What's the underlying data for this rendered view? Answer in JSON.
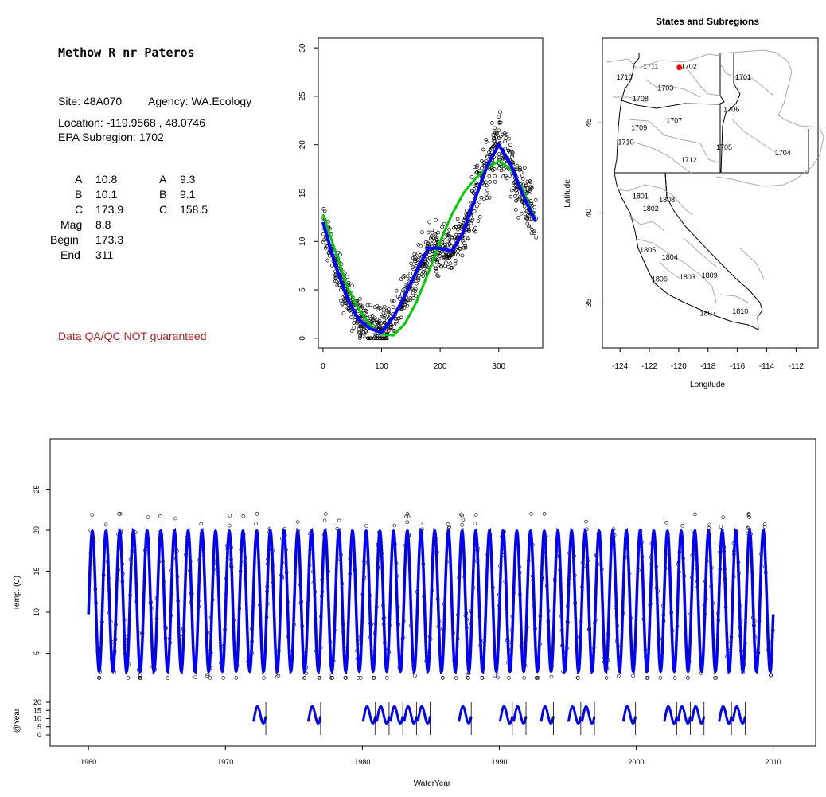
{
  "site": {
    "name": "Methow R nr Pateros",
    "site_line": "Site: 48A070",
    "agency_line": "Agency: WA.Ecology",
    "location_line": "Location: -119.9568 , 48.0746",
    "subregion_line": "EPA Subregion: 1702",
    "params_left": [
      {
        "label": "A",
        "value": "10.8"
      },
      {
        "label": "B",
        "value": "10.1"
      },
      {
        "label": "C",
        "value": "173.9"
      },
      {
        "label": "Mag",
        "value": "8.8"
      },
      {
        "label": "Begin",
        "value": "173.3"
      },
      {
        "label": "End",
        "value": "311"
      }
    ],
    "params_right": [
      {
        "label": "A",
        "value": "9.3"
      },
      {
        "label": "B",
        "value": "9.1"
      },
      {
        "label": "C",
        "value": "158.5"
      }
    ],
    "warning": "Data QA/QC NOT guaranteed",
    "warning_color": "#b22222"
  },
  "chart_data": [
    {
      "type": "scatter",
      "x_ticks": [
        "0",
        "100",
        "200",
        "300"
      ],
      "y_ticks": [
        "0",
        "5",
        "10",
        "15",
        "20",
        "25",
        "30"
      ],
      "xlim": [
        -8,
        375
      ],
      "ylim": [
        -1,
        31
      ],
      "colors": {
        "points": "#000000",
        "blue_curve": "#0000ff",
        "green_curve": "#00cc00"
      },
      "blue_curve": {
        "x": [
          0,
          20,
          40,
          60,
          80,
          100,
          120,
          140,
          160,
          180,
          200,
          220,
          240,
          260,
          280,
          300,
          320,
          340,
          365
        ],
        "y": [
          12,
          7.8,
          4.3,
          2.0,
          1.0,
          0.6,
          2.2,
          4.4,
          7.0,
          9.3,
          9.3,
          9.0,
          11.0,
          14.5,
          17.8,
          20.0,
          18.0,
          15.0,
          11.8
        ]
      },
      "green_curve": {
        "x": [
          0,
          20,
          40,
          60,
          80,
          100,
          120,
          140,
          160,
          180,
          200,
          220,
          240,
          260,
          280,
          300,
          320,
          340,
          365
        ],
        "y": [
          12.8,
          9.2,
          5.5,
          3.1,
          1.4,
          0.4,
          0.3,
          1.5,
          3.8,
          6.8,
          10.0,
          12.8,
          15.0,
          16.5,
          17.6,
          18.3,
          17.5,
          15.5,
          12.0
        ]
      }
    },
    {
      "type": "map",
      "title": "States and Subregions",
      "xlabel": "Longitude",
      "ylabel": "Latitude",
      "x_ticks": [
        "-124",
        "-122",
        "-120",
        "-118",
        "-116",
        "-114",
        "-112"
      ],
      "y_ticks": [
        "35",
        "40",
        "45"
      ],
      "site_point": {
        "lon": -119.9568,
        "lat": 48.0746,
        "color": "#ff0000"
      },
      "regions": [
        {
          "label": "1702",
          "lon": -119.3,
          "lat": 48.0
        },
        {
          "label": "1711",
          "lon": -121.9,
          "lat": 48.0
        },
        {
          "label": "1710",
          "lon": -123.7,
          "lat": 47.4
        },
        {
          "label": "1703",
          "lon": -120.9,
          "lat": 46.8
        },
        {
          "label": "1701",
          "lon": -115.6,
          "lat": 47.4
        },
        {
          "label": "1708",
          "lon": -122.6,
          "lat": 46.2
        },
        {
          "label": "1706",
          "lon": -116.4,
          "lat": 45.6
        },
        {
          "label": "1707",
          "lon": -120.3,
          "lat": 45.0
        },
        {
          "label": "1709",
          "lon": -122.7,
          "lat": 44.6
        },
        {
          "label": "1710",
          "lon": -123.6,
          "lat": 43.8
        },
        {
          "label": "1705",
          "lon": -116.9,
          "lat": 43.5
        },
        {
          "label": "1704",
          "lon": -112.9,
          "lat": 43.2
        },
        {
          "label": "1712",
          "lon": -119.3,
          "lat": 42.8
        },
        {
          "label": "1801",
          "lon": -122.6,
          "lat": 40.8
        },
        {
          "label": "1808",
          "lon": -120.8,
          "lat": 40.6
        },
        {
          "label": "1802",
          "lon": -121.9,
          "lat": 40.1
        },
        {
          "label": "1805",
          "lon": -122.1,
          "lat": 37.8
        },
        {
          "label": "1804",
          "lon": -120.6,
          "lat": 37.4
        },
        {
          "label": "1806",
          "lon": -121.3,
          "lat": 36.2
        },
        {
          "label": "1803",
          "lon": -119.4,
          "lat": 36.3
        },
        {
          "label": "1809",
          "lon": -117.9,
          "lat": 36.4
        },
        {
          "label": "1807",
          "lon": -118.0,
          "lat": 34.3
        },
        {
          "label": "1810",
          "lon": -115.8,
          "lat": 34.4
        }
      ]
    },
    {
      "type": "line",
      "xlabel": "WaterYear",
      "ylabel": "Temp. (C)",
      "ylabel2": "@Year",
      "x_ticks": [
        "1960",
        "1970",
        "1980",
        "1990",
        "2000",
        "2010"
      ],
      "y_ticks": [
        "5",
        "10",
        "15",
        "20",
        "25"
      ],
      "y2_ticks": [
        "0",
        "5",
        "10",
        "15",
        "20"
      ],
      "xlim": [
        1957.2,
        2013.1
      ],
      "ylim": [
        0,
        30
      ],
      "series": [
        {
          "start": 1960.0,
          "end": 2010.0,
          "period_years": 1,
          "min": 2.8,
          "max": 19.9,
          "color": "#0000ff"
        }
      ],
      "annual_years": [
        1972,
        1976,
        1980,
        1981,
        1982,
        1983,
        1984,
        1987,
        1990,
        1991,
        1993,
        1995,
        1996,
        1999,
        2002,
        2003,
        2004,
        2006,
        2007
      ]
    }
  ]
}
